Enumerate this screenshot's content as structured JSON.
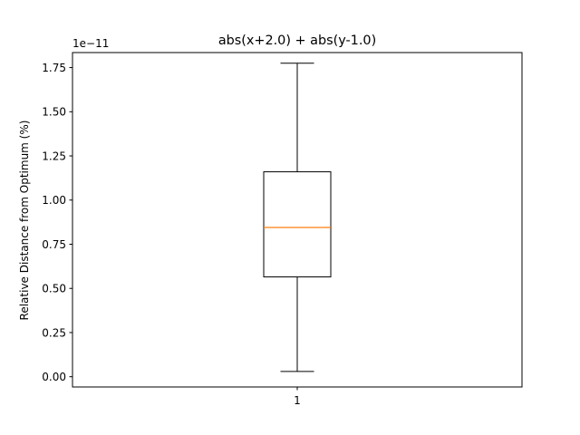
{
  "chart_data": {
    "type": "box",
    "title": "abs(x+2.0) + abs(y-1.0)",
    "xlabel": "",
    "ylabel": "Relative Distance from Optimum (%)",
    "offset_label": "1e−11",
    "categories": [
      "1"
    ],
    "y_scale_exponent": -11,
    "ylim": [
      -0.058,
      1.835
    ],
    "yticks": [
      0.0,
      0.25,
      0.5,
      0.75,
      1.0,
      1.25,
      1.5,
      1.75
    ],
    "ytick_labels": [
      "0.00",
      "0.25",
      "0.50",
      "0.75",
      "1.00",
      "1.25",
      "1.50",
      "1.75"
    ],
    "boxes": [
      {
        "category": "1",
        "whisker_low": 0.03,
        "q1": 0.565,
        "median": 0.845,
        "q3": 1.16,
        "whisker_high": 1.775
      }
    ],
    "colors": {
      "median": "#ff7f0e",
      "box": "#000000"
    },
    "grid": false
  }
}
